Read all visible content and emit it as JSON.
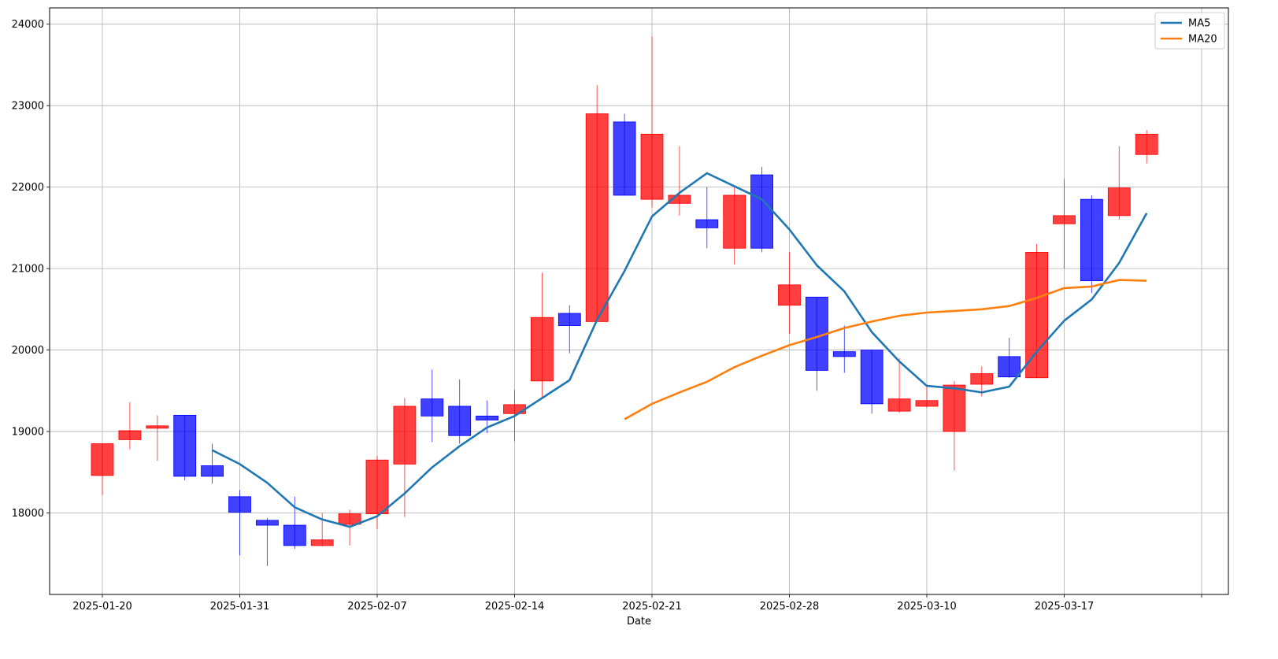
{
  "chart_data": {
    "type": "candlestick",
    "title": "",
    "xlabel": "Date",
    "ylabel": "",
    "ylim": [
      17000,
      24200
    ],
    "yticks": [
      18000,
      19000,
      20000,
      21000,
      22000,
      23000,
      24000
    ],
    "xticks": [
      {
        "label": "2025-01-20",
        "index": 0
      },
      {
        "label": "2025-01-31",
        "index": 5
      },
      {
        "label": "2025-02-07",
        "index": 10
      },
      {
        "label": "2025-02-14",
        "index": 15
      },
      {
        "label": "2025-02-21",
        "index": 20
      },
      {
        "label": "2025-02-28",
        "index": 25
      },
      {
        "label": "2025-03-10",
        "index": 30
      },
      {
        "label": "2025-03-17",
        "index": 35
      },
      {
        "label": "",
        "index": 40
      }
    ],
    "grid": true,
    "legend_position": "top-right",
    "colors": {
      "up": "#ff0000",
      "down": "#0000ff",
      "ma5": "#1f77b4",
      "ma20": "#ff7f0e"
    },
    "candles": [
      {
        "open": 18460,
        "high": 18850,
        "low": 18220,
        "close": 18850
      },
      {
        "open": 18900,
        "high": 19360,
        "low": 18780,
        "close": 19010
      },
      {
        "open": 19040,
        "high": 19200,
        "low": 18640,
        "close": 19070
      },
      {
        "open": 19200,
        "high": 19200,
        "low": 18400,
        "close": 18450
      },
      {
        "open": 18580,
        "high": 18850,
        "low": 18360,
        "close": 18450
      },
      {
        "open": 18200,
        "high": 18280,
        "low": 17480,
        "close": 18010
      },
      {
        "open": 17910,
        "high": 17940,
        "low": 17350,
        "close": 17850
      },
      {
        "open": 17850,
        "high": 18200,
        "low": 17560,
        "close": 17600
      },
      {
        "open": 17600,
        "high": 18000,
        "low": 17590,
        "close": 17670
      },
      {
        "open": 17860,
        "high": 18040,
        "low": 17600,
        "close": 17990
      },
      {
        "open": 17990,
        "high": 18700,
        "low": 17800,
        "close": 18650
      },
      {
        "open": 18600,
        "high": 19410,
        "low": 17950,
        "close": 19310
      },
      {
        "open": 19400,
        "high": 19760,
        "low": 18870,
        "close": 19190
      },
      {
        "open": 19310,
        "high": 19640,
        "low": 18850,
        "close": 18950
      },
      {
        "open": 19190,
        "high": 19380,
        "low": 18980,
        "close": 19140
      },
      {
        "open": 19220,
        "high": 19510,
        "low": 18880,
        "close": 19330
      },
      {
        "open": 19620,
        "high": 20950,
        "low": 19400,
        "close": 20400
      },
      {
        "open": 20450,
        "high": 20550,
        "low": 19960,
        "close": 20300
      },
      {
        "open": 20350,
        "high": 23250,
        "low": 20350,
        "close": 22900
      },
      {
        "open": 22800,
        "high": 22900,
        "low": 21900,
        "close": 21900
      },
      {
        "open": 21850,
        "high": 23850,
        "low": 21750,
        "close": 22650
      },
      {
        "open": 21800,
        "high": 22500,
        "low": 21650,
        "close": 21900
      },
      {
        "open": 21600,
        "high": 22000,
        "low": 21250,
        "close": 21500
      },
      {
        "open": 21250,
        "high": 22000,
        "low": 21050,
        "close": 21900
      },
      {
        "open": 22150,
        "high": 22250,
        "low": 21200,
        "close": 21250
      },
      {
        "open": 20550,
        "high": 21200,
        "low": 20200,
        "close": 20800
      },
      {
        "open": 20650,
        "high": 20650,
        "low": 19500,
        "close": 19750
      },
      {
        "open": 19980,
        "high": 20300,
        "low": 19720,
        "close": 19920
      },
      {
        "open": 20000,
        "high": 20000,
        "low": 19220,
        "close": 19340
      },
      {
        "open": 19250,
        "high": 19900,
        "low": 19230,
        "close": 19400
      },
      {
        "open": 19310,
        "high": 19580,
        "low": 19290,
        "close": 19380
      },
      {
        "open": 19000,
        "high": 19620,
        "low": 18520,
        "close": 19570
      },
      {
        "open": 19580,
        "high": 19800,
        "low": 19430,
        "close": 19710
      },
      {
        "open": 19920,
        "high": 20150,
        "low": 19660,
        "close": 19670
      },
      {
        "open": 19660,
        "high": 21300,
        "low": 19660,
        "close": 21200
      },
      {
        "open": 21550,
        "high": 22100,
        "low": 21000,
        "close": 21650
      },
      {
        "open": 21850,
        "high": 21900,
        "low": 20700,
        "close": 20850
      },
      {
        "open": 21650,
        "high": 22500,
        "low": 21600,
        "close": 21990
      },
      {
        "open": 22400,
        "high": 22700,
        "low": 22290,
        "close": 22650
      }
    ],
    "series": [
      {
        "name": "MA5",
        "start_index": 4,
        "values": [
          18770,
          18600,
          18370,
          18070,
          17920,
          17830,
          17960,
          18240,
          18560,
          18820,
          19050,
          19190,
          19410,
          19630,
          20370,
          20970,
          21640,
          21930,
          22170,
          22010,
          21850,
          21480,
          21040,
          20720,
          20220,
          19860,
          19560,
          19530,
          19480,
          19550,
          19980,
          20360,
          20620,
          21070,
          21680
        ]
      },
      {
        "name": "MA20",
        "start_index": 19,
        "values": [
          19150,
          19340,
          19480,
          19610,
          19790,
          19930,
          20060,
          20160,
          20270,
          20350,
          20420,
          20460,
          20480,
          20500,
          20540,
          20640,
          20760,
          20780,
          20860,
          20850
        ]
      }
    ]
  }
}
